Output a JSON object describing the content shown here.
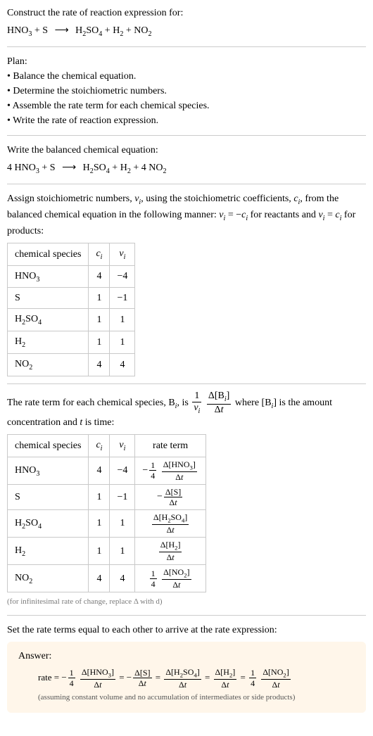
{
  "colors": {
    "text": "#000000",
    "rule": "#cccccc",
    "table_border": "#c9c9c9",
    "answer_bg": "#fff6ea",
    "note": "#7a7a7a"
  },
  "intro": {
    "line1": "Construct the rate of reaction expression for:",
    "equation_parts": {
      "r1": "HNO",
      "r1_sub": "3",
      "plus1": " + ",
      "r2": "S",
      "arrow": "⟶",
      "p1": "H",
      "p1_sub": "2",
      "p1b": "SO",
      "p1b_sub": "4",
      "plus2": " + ",
      "p2": "H",
      "p2_sub": "2",
      "plus3": " + ",
      "p3": "NO",
      "p3_sub": "2"
    }
  },
  "plan": {
    "title": "Plan:",
    "items": [
      "Balance the chemical equation.",
      "Determine the stoichiometric numbers.",
      "Assemble the rate term for each chemical species.",
      "Write the rate of reaction expression."
    ]
  },
  "balanced": {
    "title": "Write the balanced chemical equation:",
    "c1": "4 ",
    "c4": "4 "
  },
  "assign": {
    "text1": "Assign stoichiometric numbers, ",
    "nu_i": "ν",
    "nu_sub": "i",
    "text2": ", using the stoichiometric coefficients, ",
    "c_i": "c",
    "c_sub": "i",
    "text3": ", from the balanced chemical equation in the following manner: ",
    "rel1a": "ν",
    "rel1_sub": "i",
    "rel1b": " = −",
    "rel1c": "c",
    "rel1c_sub": "i",
    "text4": " for reactants and ",
    "rel2a": "ν",
    "rel2_sub": "i",
    "rel2b": " = ",
    "rel2c": "c",
    "rel2c_sub": "i",
    "text5": " for products:"
  },
  "table1": {
    "headers": {
      "species": "chemical species",
      "c": "c",
      "c_sub": "i",
      "nu": "ν",
      "nu_sub": "i"
    },
    "rows": [
      {
        "sp_html": "HNO<sub>3</sub>",
        "c": "4",
        "nu": "−4"
      },
      {
        "sp_html": "S",
        "c": "1",
        "nu": "−1"
      },
      {
        "sp_html": "H<sub>2</sub>SO<sub>4</sub>",
        "c": "1",
        "nu": "1"
      },
      {
        "sp_html": "H<sub>2</sub>",
        "c": "1",
        "nu": "1"
      },
      {
        "sp_html": "NO<sub>2</sub>",
        "c": "4",
        "nu": "4"
      }
    ]
  },
  "rateterm_intro": {
    "t1": "The rate term for each chemical species, B",
    "sub_i1": "i",
    "t2": ", is ",
    "frac1_num": "1",
    "frac1_den_a": "ν",
    "frac1_den_sub": "i",
    "frac2_num_a": "Δ[B",
    "frac2_num_sub": "i",
    "frac2_num_b": "]",
    "frac2_den": "Δt",
    "t3": " where [B",
    "sub_i2": "i",
    "t4": "] is the amount concentration and ",
    "t_i": "t",
    "t5": " is time:"
  },
  "table2": {
    "headers": {
      "species": "chemical species",
      "c": "c",
      "c_sub": "i",
      "nu": "ν",
      "nu_sub": "i",
      "rate": "rate term"
    },
    "rows": [
      {
        "sp_html": "HNO<sub>3</sub>",
        "c": "4",
        "nu": "−4",
        "rate_prefix": "−",
        "rate_coef_num": "1",
        "rate_coef_den": "4",
        "rate_num": "Δ[HNO<sub>3</sub>]",
        "rate_den": "Δt"
      },
      {
        "sp_html": "S",
        "c": "1",
        "nu": "−1",
        "rate_prefix": "−",
        "rate_coef_num": "",
        "rate_coef_den": "",
        "rate_num": "Δ[S]",
        "rate_den": "Δt"
      },
      {
        "sp_html": "H<sub>2</sub>SO<sub>4</sub>",
        "c": "1",
        "nu": "1",
        "rate_prefix": "",
        "rate_coef_num": "",
        "rate_coef_den": "",
        "rate_num": "Δ[H<sub>2</sub>SO<sub>4</sub>]",
        "rate_den": "Δt"
      },
      {
        "sp_html": "H<sub>2</sub>",
        "c": "1",
        "nu": "1",
        "rate_prefix": "",
        "rate_coef_num": "",
        "rate_coef_den": "",
        "rate_num": "Δ[H<sub>2</sub>]",
        "rate_den": "Δt"
      },
      {
        "sp_html": "NO<sub>2</sub>",
        "c": "4",
        "nu": "4",
        "rate_prefix": "",
        "rate_coef_num": "1",
        "rate_coef_den": "4",
        "rate_num": "Δ[NO<sub>2</sub>]",
        "rate_den": "Δt"
      }
    ]
  },
  "infinitesimal_note": "(for infinitesimal rate of change, replace Δ with d)",
  "set_equal": "Set the rate terms equal to each other to arrive at the rate expression:",
  "answer": {
    "label": "Answer:",
    "lead": "rate = ",
    "terms": [
      {
        "prefix": "−",
        "coef_num": "1",
        "coef_den": "4",
        "num": "Δ[HNO<sub>3</sub>]",
        "den": "Δt"
      },
      {
        "prefix": "−",
        "coef_num": "",
        "coef_den": "",
        "num": "Δ[S]",
        "den": "Δt"
      },
      {
        "prefix": "",
        "coef_num": "",
        "coef_den": "",
        "num": "Δ[H<sub>2</sub>SO<sub>4</sub>]",
        "den": "Δt"
      },
      {
        "prefix": "",
        "coef_num": "",
        "coef_den": "",
        "num": "Δ[H<sub>2</sub>]",
        "den": "Δt"
      },
      {
        "prefix": "",
        "coef_num": "1",
        "coef_den": "4",
        "num": "Δ[NO<sub>2</sub>]",
        "den": "Δt"
      }
    ],
    "eq": " = ",
    "note": "(assuming constant volume and no accumulation of intermediates or side products)"
  }
}
